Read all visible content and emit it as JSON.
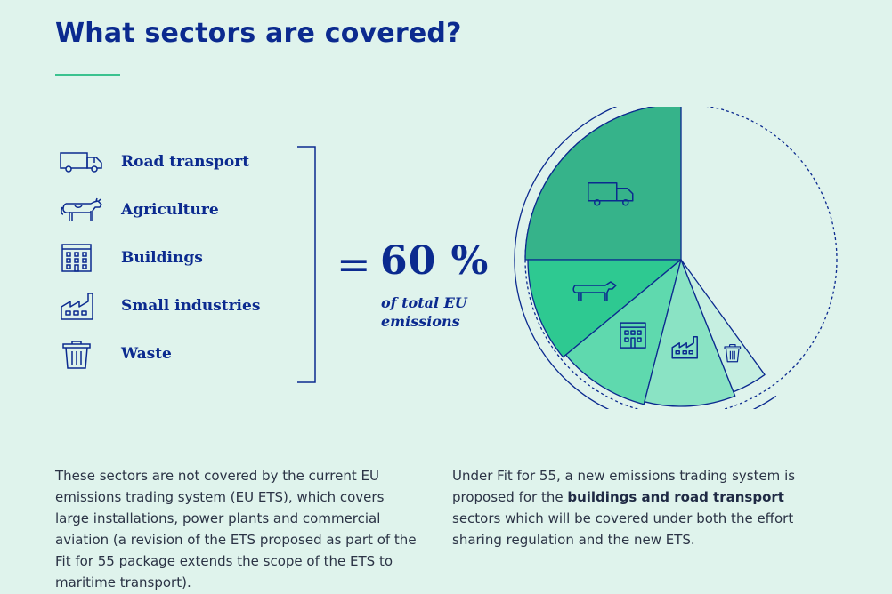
{
  "title": "What sectors are covered?",
  "colors": {
    "navy": "#0b2a8f",
    "accent": "#3ac28f",
    "background": "#dff3ec"
  },
  "sectors": [
    {
      "label": "Road transport",
      "icon": "truck-icon"
    },
    {
      "label": "Agriculture",
      "icon": "cow-icon"
    },
    {
      "label": "Buildings",
      "icon": "building-icon"
    },
    {
      "label": "Small industries",
      "icon": "factory-icon"
    },
    {
      "label": "Waste",
      "icon": "trash-bin-icon"
    }
  ],
  "summary": {
    "equals": "=",
    "value": "60 %",
    "caption": "of total EU emissions"
  },
  "chart_data": {
    "type": "pie",
    "title": "",
    "total_covered_percent": 60,
    "slices": [
      {
        "label": "Road transport",
        "value": 25,
        "color": "#36b38a",
        "icon": "truck-icon"
      },
      {
        "label": "Agriculture",
        "value": 11,
        "color": "#2ec991",
        "icon": "cow-icon"
      },
      {
        "label": "Buildings",
        "value": 10,
        "color": "#5fd9ae",
        "icon": "building-icon"
      },
      {
        "label": "Small industries",
        "value": 10,
        "color": "#8ae3c4",
        "icon": "factory-icon"
      },
      {
        "label": "Waste",
        "value": 4,
        "color": "#c6efe1",
        "icon": "trash-bin-icon"
      }
    ],
    "remainder": {
      "value": 40,
      "style": "dashed outline"
    }
  },
  "notes": {
    "left": "These sectors are not covered by the current EU emissions trading system (EU ETS), which covers large installations, power plants and commercial aviation (a revision of the ETS proposed as part of  the Fit for 55 package extends the scope of the ETS to maritime transport).",
    "right_part1": "Under Fit for 55, a new emissions trading system is proposed for the ",
    "right_bold": "buildings and road transport",
    "right_part2": " sectors which will be covered under both the effort sharing regulation and the new ETS."
  }
}
